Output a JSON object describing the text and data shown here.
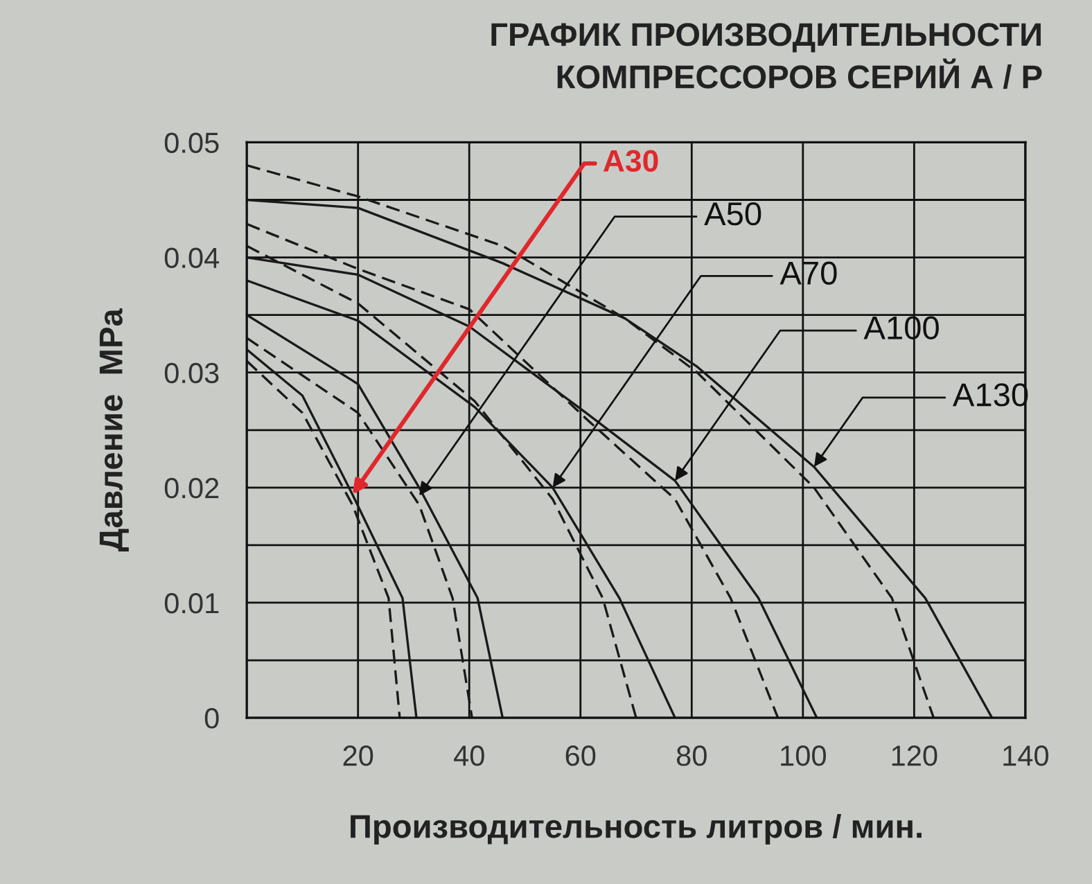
{
  "chart_data": {
    "type": "line",
    "title": "ГРАФИК ПРОИЗВОДИТЕЛЬНОСТИ\nКОМПРЕССОРОВ СЕРИЙ А / Р",
    "xlabel": "Производительность литров / мин.",
    "ylabel": "Давление  MPa",
    "xlim": [
      0,
      140
    ],
    "xticks": [
      20,
      40,
      60,
      80,
      100,
      120,
      140
    ],
    "ylim": [
      0,
      0.05
    ],
    "yticks": [
      0,
      {
        "value": 0.005,
        "label": null
      },
      0.01,
      {
        "value": 0.015,
        "label": null
      },
      0.02,
      {
        "value": 0.025,
        "label": null
      },
      0.03,
      {
        "value": 0.035,
        "label": null
      },
      0.04,
      {
        "value": 0.045,
        "label": null
      },
      0.05
    ],
    "grid": true,
    "legend": false,
    "marker": "none",
    "series": [
      {
        "color": "#1a1a1a",
        "line_style": "solid",
        "x": [
          0,
          10,
          19,
          28,
          30.5
        ],
        "values": [
          0.032,
          0.028,
          0.0194,
          0.0104,
          0
        ]
      },
      {
        "color": "#1a1a1a",
        "line_style": "dashed",
        "x": [
          0,
          10,
          19,
          25.5,
          27.5
        ],
        "values": [
          0.031,
          0.0265,
          0.0185,
          0.0104,
          0
        ]
      },
      {
        "color": "#1a1a1a",
        "line_style": "solid",
        "x": [
          0,
          20,
          31,
          41.5,
          46
        ],
        "values": [
          0.035,
          0.029,
          0.02,
          0.0104,
          0
        ]
      },
      {
        "color": "#1a1a1a",
        "line_style": "dashed",
        "x": [
          0,
          20,
          31,
          37,
          40.5
        ],
        "values": [
          0.033,
          0.0265,
          0.0185,
          0.0104,
          0
        ]
      },
      {
        "color": "#1a1a1a",
        "line_style": "solid",
        "x": [
          0,
          20,
          41,
          55,
          67,
          77
        ],
        "values": [
          0.038,
          0.0345,
          0.027,
          0.02,
          0.0104,
          0
        ]
      },
      {
        "color": "#1a1a1a",
        "line_style": "dashed",
        "x": [
          0,
          20,
          41,
          55,
          64,
          70
        ],
        "values": [
          0.041,
          0.036,
          0.0275,
          0.019,
          0.0104,
          0
        ]
      },
      {
        "color": "#1a1a1a",
        "line_style": "solid",
        "x": [
          0,
          20,
          40,
          61,
          77,
          92,
          102.5
        ],
        "values": [
          0.04,
          0.0385,
          0.034,
          0.0265,
          0.0206,
          0.0104,
          0
        ]
      },
      {
        "color": "#1a1a1a",
        "line_style": "dashed",
        "x": [
          0,
          20,
          40,
          61,
          77,
          87,
          95.5
        ],
        "values": [
          0.0429,
          0.039,
          0.0355,
          0.026,
          0.019,
          0.0104,
          0
        ]
      },
      {
        "color": "#1a1a1a",
        "line_style": "solid",
        "x": [
          0,
          20,
          46,
          68,
          81,
          102,
          122,
          134
        ],
        "values": [
          0.045,
          0.0443,
          0.0395,
          0.0347,
          0.0305,
          0.0218,
          0.0104,
          0
        ]
      },
      {
        "color": "#1a1a1a",
        "line_style": "dashed",
        "x": [
          0,
          20,
          46,
          68,
          81,
          102,
          116,
          123.5
        ],
        "values": [
          0.048,
          0.0453,
          0.041,
          0.0347,
          0.03,
          0.02,
          0.0104,
          0
        ]
      }
    ],
    "annotations": [
      {
        "text": "A30",
        "x": 19,
        "y": 0.0194
      },
      {
        "text": "A50",
        "x": 31,
        "y": 0.0193
      },
      {
        "text": "A70",
        "x": 55,
        "y": 0.02
      },
      {
        "text": "A100",
        "x": 77,
        "y": 0.0206
      },
      {
        "text": "A130",
        "x": 102,
        "y": 0.0218
      }
    ]
  }
}
